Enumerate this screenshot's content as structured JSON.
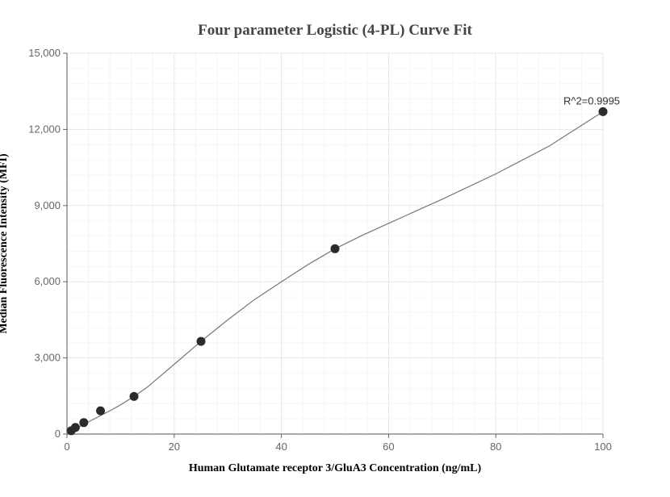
{
  "chart_data": {
    "type": "scatter",
    "title": "Four parameter Logistic (4-PL) Curve Fit",
    "xlabel": "Human Glutamate receptor 3/GluA3 Concentration (ng/mL)",
    "ylabel": "Median Fluorescence Intensity (MFI)",
    "xlim": [
      0,
      100
    ],
    "ylim": [
      0,
      15000
    ],
    "x_ticks": [
      0,
      20,
      40,
      60,
      80,
      100
    ],
    "y_ticks": [
      0,
      3000,
      6000,
      9000,
      12000,
      15000
    ],
    "x_tick_labels": [
      "0",
      "20",
      "40",
      "60",
      "80",
      "100"
    ],
    "y_tick_labels": [
      "0",
      "3,000",
      "6,000",
      "9,000",
      "12,000",
      "15,000"
    ],
    "grid": true,
    "series": [
      {
        "x": [
          0.78,
          1.56,
          3.13,
          6.25,
          12.5,
          25,
          50,
          100
        ],
        "y": [
          130,
          260,
          450,
          920,
          1480,
          3650,
          7300,
          12700
        ],
        "color": "#2b2b2b"
      }
    ],
    "fit_curve": {
      "x": [
        0,
        2,
        4,
        6,
        8,
        10,
        12.5,
        15,
        20,
        25,
        30,
        35,
        40,
        45,
        50,
        55,
        60,
        70,
        80,
        90,
        100
      ],
      "y": [
        60,
        260,
        480,
        700,
        920,
        1150,
        1480,
        1850,
        2750,
        3650,
        4500,
        5300,
        6000,
        6680,
        7300,
        7820,
        8300,
        9250,
        10250,
        11350,
        12700
      ],
      "color": "#777777"
    },
    "annotations": [
      {
        "text": "R^2=0.9995",
        "x": 100,
        "y": 12700
      }
    ]
  }
}
